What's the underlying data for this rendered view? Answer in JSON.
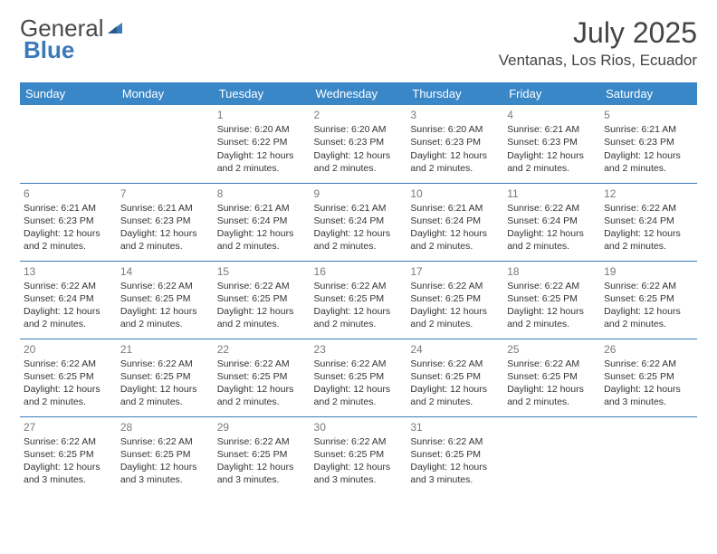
{
  "logo": {
    "word1": "General",
    "word2": "Blue"
  },
  "title": "July 2025",
  "location": "Ventanas, Los Rios, Ecuador",
  "colors": {
    "header_bg": "#3a87c8",
    "header_text": "#ffffff",
    "border": "#3a7ab8",
    "daynum": "#7a7a7a",
    "body_text": "#333333",
    "logo_gray": "#4a4a4a",
    "logo_blue": "#3a7ab8",
    "page_bg": "#ffffff"
  },
  "day_headers": [
    "Sunday",
    "Monday",
    "Tuesday",
    "Wednesday",
    "Thursday",
    "Friday",
    "Saturday"
  ],
  "weeks": [
    [
      null,
      null,
      {
        "n": "1",
        "sr": "Sunrise: 6:20 AM",
        "ss": "Sunset: 6:22 PM",
        "dl": "Daylight: 12 hours and 2 minutes."
      },
      {
        "n": "2",
        "sr": "Sunrise: 6:20 AM",
        "ss": "Sunset: 6:23 PM",
        "dl": "Daylight: 12 hours and 2 minutes."
      },
      {
        "n": "3",
        "sr": "Sunrise: 6:20 AM",
        "ss": "Sunset: 6:23 PM",
        "dl": "Daylight: 12 hours and 2 minutes."
      },
      {
        "n": "4",
        "sr": "Sunrise: 6:21 AM",
        "ss": "Sunset: 6:23 PM",
        "dl": "Daylight: 12 hours and 2 minutes."
      },
      {
        "n": "5",
        "sr": "Sunrise: 6:21 AM",
        "ss": "Sunset: 6:23 PM",
        "dl": "Daylight: 12 hours and 2 minutes."
      }
    ],
    [
      {
        "n": "6",
        "sr": "Sunrise: 6:21 AM",
        "ss": "Sunset: 6:23 PM",
        "dl": "Daylight: 12 hours and 2 minutes."
      },
      {
        "n": "7",
        "sr": "Sunrise: 6:21 AM",
        "ss": "Sunset: 6:23 PM",
        "dl": "Daylight: 12 hours and 2 minutes."
      },
      {
        "n": "8",
        "sr": "Sunrise: 6:21 AM",
        "ss": "Sunset: 6:24 PM",
        "dl": "Daylight: 12 hours and 2 minutes."
      },
      {
        "n": "9",
        "sr": "Sunrise: 6:21 AM",
        "ss": "Sunset: 6:24 PM",
        "dl": "Daylight: 12 hours and 2 minutes."
      },
      {
        "n": "10",
        "sr": "Sunrise: 6:21 AM",
        "ss": "Sunset: 6:24 PM",
        "dl": "Daylight: 12 hours and 2 minutes."
      },
      {
        "n": "11",
        "sr": "Sunrise: 6:22 AM",
        "ss": "Sunset: 6:24 PM",
        "dl": "Daylight: 12 hours and 2 minutes."
      },
      {
        "n": "12",
        "sr": "Sunrise: 6:22 AM",
        "ss": "Sunset: 6:24 PM",
        "dl": "Daylight: 12 hours and 2 minutes."
      }
    ],
    [
      {
        "n": "13",
        "sr": "Sunrise: 6:22 AM",
        "ss": "Sunset: 6:24 PM",
        "dl": "Daylight: 12 hours and 2 minutes."
      },
      {
        "n": "14",
        "sr": "Sunrise: 6:22 AM",
        "ss": "Sunset: 6:25 PM",
        "dl": "Daylight: 12 hours and 2 minutes."
      },
      {
        "n": "15",
        "sr": "Sunrise: 6:22 AM",
        "ss": "Sunset: 6:25 PM",
        "dl": "Daylight: 12 hours and 2 minutes."
      },
      {
        "n": "16",
        "sr": "Sunrise: 6:22 AM",
        "ss": "Sunset: 6:25 PM",
        "dl": "Daylight: 12 hours and 2 minutes."
      },
      {
        "n": "17",
        "sr": "Sunrise: 6:22 AM",
        "ss": "Sunset: 6:25 PM",
        "dl": "Daylight: 12 hours and 2 minutes."
      },
      {
        "n": "18",
        "sr": "Sunrise: 6:22 AM",
        "ss": "Sunset: 6:25 PM",
        "dl": "Daylight: 12 hours and 2 minutes."
      },
      {
        "n": "19",
        "sr": "Sunrise: 6:22 AM",
        "ss": "Sunset: 6:25 PM",
        "dl": "Daylight: 12 hours and 2 minutes."
      }
    ],
    [
      {
        "n": "20",
        "sr": "Sunrise: 6:22 AM",
        "ss": "Sunset: 6:25 PM",
        "dl": "Daylight: 12 hours and 2 minutes."
      },
      {
        "n": "21",
        "sr": "Sunrise: 6:22 AM",
        "ss": "Sunset: 6:25 PM",
        "dl": "Daylight: 12 hours and 2 minutes."
      },
      {
        "n": "22",
        "sr": "Sunrise: 6:22 AM",
        "ss": "Sunset: 6:25 PM",
        "dl": "Daylight: 12 hours and 2 minutes."
      },
      {
        "n": "23",
        "sr": "Sunrise: 6:22 AM",
        "ss": "Sunset: 6:25 PM",
        "dl": "Daylight: 12 hours and 2 minutes."
      },
      {
        "n": "24",
        "sr": "Sunrise: 6:22 AM",
        "ss": "Sunset: 6:25 PM",
        "dl": "Daylight: 12 hours and 2 minutes."
      },
      {
        "n": "25",
        "sr": "Sunrise: 6:22 AM",
        "ss": "Sunset: 6:25 PM",
        "dl": "Daylight: 12 hours and 2 minutes."
      },
      {
        "n": "26",
        "sr": "Sunrise: 6:22 AM",
        "ss": "Sunset: 6:25 PM",
        "dl": "Daylight: 12 hours and 3 minutes."
      }
    ],
    [
      {
        "n": "27",
        "sr": "Sunrise: 6:22 AM",
        "ss": "Sunset: 6:25 PM",
        "dl": "Daylight: 12 hours and 3 minutes."
      },
      {
        "n": "28",
        "sr": "Sunrise: 6:22 AM",
        "ss": "Sunset: 6:25 PM",
        "dl": "Daylight: 12 hours and 3 minutes."
      },
      {
        "n": "29",
        "sr": "Sunrise: 6:22 AM",
        "ss": "Sunset: 6:25 PM",
        "dl": "Daylight: 12 hours and 3 minutes."
      },
      {
        "n": "30",
        "sr": "Sunrise: 6:22 AM",
        "ss": "Sunset: 6:25 PM",
        "dl": "Daylight: 12 hours and 3 minutes."
      },
      {
        "n": "31",
        "sr": "Sunrise: 6:22 AM",
        "ss": "Sunset: 6:25 PM",
        "dl": "Daylight: 12 hours and 3 minutes."
      },
      null,
      null
    ]
  ]
}
